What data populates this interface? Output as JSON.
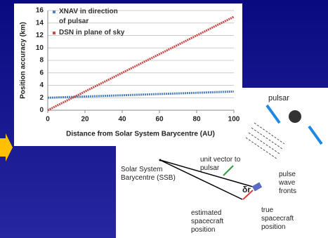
{
  "chart_data": {
    "type": "line",
    "x": [
      0,
      20,
      40,
      60,
      80,
      100
    ],
    "series": [
      {
        "name": "XNAV in direction of pulsar",
        "color": "#4f81bd",
        "values": [
          2.0,
          2.2,
          2.4,
          2.6,
          2.8,
          3.0
        ]
      },
      {
        "name": "DSN in plane of sky",
        "color": "#c0504d",
        "values": [
          0,
          3,
          6,
          9,
          12,
          15
        ]
      }
    ],
    "xlabel": "Distance from Solar System Barycentre (AU)",
    "ylabel": "Position accuracy (km)",
    "xlim": [
      0,
      100
    ],
    "xticks": [
      0,
      20,
      40,
      60,
      80,
      100
    ],
    "ylim": [
      0,
      16
    ],
    "yticks": [
      0,
      2,
      4,
      6,
      8,
      10,
      12,
      14,
      16
    ],
    "grid": true,
    "legend": "upper left"
  },
  "diagram": {
    "labels": [
      "pulsar",
      "unit vector to pulsar",
      "pulse wave fronts",
      "Solar System Barycentre (SSB)",
      "δr",
      "estimated spacecraft position",
      "true spacecraft position"
    ]
  }
}
